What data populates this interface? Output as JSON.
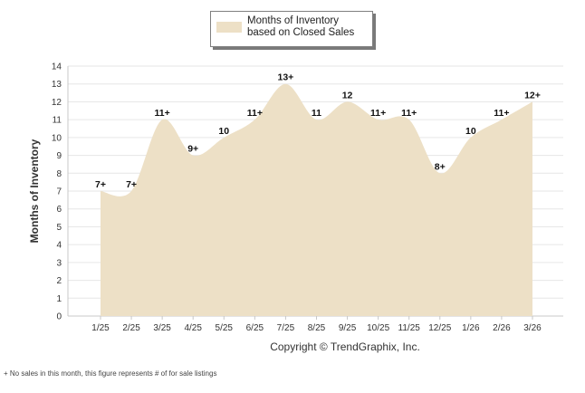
{
  "chart_data": {
    "type": "area",
    "legend": "Months of Inventory based on Closed Sales",
    "ylabel": "Months of Inventory",
    "xlabel": "",
    "ylim": [
      0,
      14
    ],
    "yticks": [
      "0",
      "1",
      "2",
      "3",
      "4",
      "5",
      "6",
      "7",
      "8",
      "9",
      "10",
      "11",
      "12",
      "13",
      "14"
    ],
    "categories": [
      "1/25",
      "2/25",
      "3/25",
      "4/25",
      "5/25",
      "6/25",
      "7/25",
      "8/25",
      "9/25",
      "10/25",
      "11/25",
      "12/25",
      "1/26",
      "2/26",
      "3/26"
    ],
    "values": [
      7,
      7,
      11,
      9,
      10,
      11,
      13,
      11,
      12,
      11,
      11,
      8,
      10,
      11,
      12
    ],
    "data_labels": [
      "7+",
      "7+",
      "11+",
      "9+",
      "10",
      "11+",
      "13+",
      "11",
      "12",
      "11+",
      "11+",
      "8+",
      "10",
      "11+",
      "12+"
    ],
    "fill_color": "#ede0c6"
  },
  "copyright": "Copyright © TrendGraphix, Inc.",
  "footnote": "+ No sales in this month, this figure represents # of for sale listings"
}
